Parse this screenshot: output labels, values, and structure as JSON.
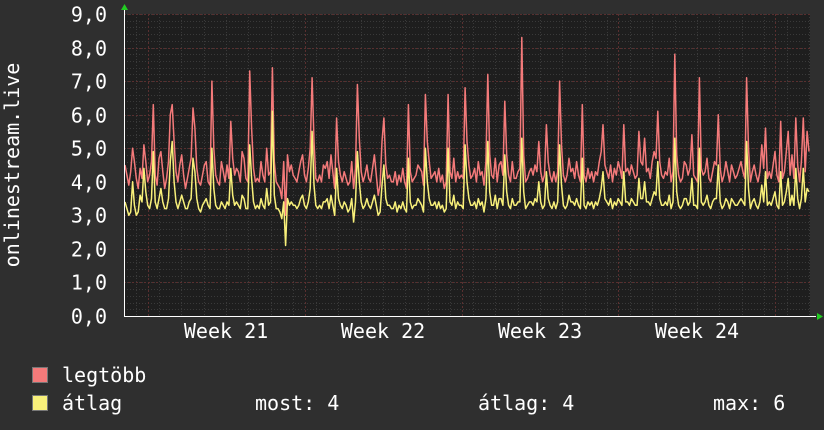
{
  "colors": {
    "background": "#2f2f2f",
    "plot_background": "#1e1e1e",
    "grid_minor": "#3a3a3a",
    "grid_major": "#5a2f2f",
    "max_series": "#f47a7a",
    "avg_series": "#f8f07a",
    "axis_arrow": "#22cc22"
  },
  "chart_data": {
    "type": "line",
    "ylabel": "onlinestream.live",
    "ylim": [
      0,
      9
    ],
    "yticks": [
      "0,0",
      "1,0",
      "2,0",
      "3,0",
      "4,0",
      "5,0",
      "6,0",
      "7,0",
      "8,0",
      "9,0"
    ],
    "xlabels": [
      "Week 21",
      "Week 22",
      "Week 23",
      "Week 24"
    ],
    "x_range_weeks": [
      20.35,
      24.72
    ],
    "grid": true,
    "series": [
      {
        "name": "legtöbb",
        "color": "#f47a7a",
        "values": [
          4.5,
          4.2,
          3.9,
          4.3,
          5.0,
          4.6,
          4.1,
          3.8,
          4.4,
          4.1,
          5.1,
          4.6,
          4.0,
          4.2,
          4.6,
          6.3,
          4.2,
          3.9,
          4.7,
          4.9,
          4.3,
          3.8,
          4.1,
          4.6,
          6.0,
          6.3,
          5.2,
          4.3,
          4.0,
          4.5,
          4.8,
          4.2,
          3.8,
          4.1,
          4.4,
          4.7,
          6.2,
          5.6,
          4.4,
          4.0,
          3.9,
          4.2,
          4.5,
          4.6,
          4.0,
          3.9,
          7.0,
          5.0,
          4.2,
          4.0,
          3.9,
          4.6,
          4.3,
          4.0,
          4.5,
          4.1,
          5.8,
          4.7,
          4.2,
          4.4,
          4.3,
          4.0,
          4.9,
          4.7,
          4.1,
          4.0,
          7.3,
          5.6,
          4.4,
          4.0,
          4.1,
          4.0,
          4.6,
          4.2,
          4.0,
          5.0,
          4.2,
          4.3,
          7.4,
          4.6,
          4.0,
          3.9,
          3.8,
          3.5,
          4.6,
          3.0,
          4.8,
          4.3,
          4.5,
          4.2,
          4.1,
          4.0,
          4.3,
          4.6,
          4.8,
          4.2,
          4.0,
          4.4,
          5.0,
          7.1,
          5.2,
          4.1,
          4.0,
          4.2,
          4.0,
          4.5,
          4.4,
          4.6,
          4.1,
          4.8,
          4.3,
          3.8,
          5.9,
          4.6,
          4.2,
          4.0,
          4.3,
          4.1,
          3.9,
          4.0,
          4.6,
          3.8,
          4.4,
          6.9,
          5.3,
          4.3,
          4.0,
          4.2,
          4.5,
          4.1,
          4.0,
          4.4,
          4.8,
          4.2,
          3.6,
          3.9,
          5.2,
          5.9,
          4.5,
          4.1,
          4.2,
          4.0,
          4.0,
          4.3,
          3.9,
          4.2,
          4.0,
          4.4,
          4.0,
          3.8,
          6.3,
          4.3,
          4.0,
          4.1,
          4.2,
          4.5,
          4.4,
          4.3,
          3.9,
          6.6,
          5.2,
          4.6,
          4.1,
          4.2,
          4.3,
          4.0,
          4.4,
          4.0,
          4.2,
          3.8,
          4.0,
          6.6,
          4.3,
          4.1,
          4.7,
          4.0,
          4.3,
          4.1,
          4.2,
          4.1,
          6.8,
          5.2,
          4.5,
          4.1,
          4.2,
          4.4,
          4.0,
          4.6,
          4.2,
          4.3,
          3.9,
          4.6,
          7.2,
          4.8,
          4.2,
          4.1,
          4.7,
          4.0,
          4.5,
          4.6,
          4.2,
          6.4,
          4.8,
          4.2,
          4.0,
          4.6,
          4.1,
          4.1,
          4.3,
          4.4,
          8.3,
          4.8,
          4.0,
          4.1,
          4.3,
          4.4,
          4.2,
          4.5,
          4.3,
          5.2,
          4.3,
          4.0,
          4.2,
          5.7,
          4.6,
          4.2,
          4.0,
          4.3,
          4.0,
          4.3,
          7.0,
          5.1,
          4.2,
          4.0,
          4.2,
          4.7,
          4.3,
          4.4,
          4.1,
          4.6,
          4.2,
          4.0,
          6.3,
          4.2,
          4.0,
          4.4,
          4.1,
          4.3,
          4.0,
          4.3,
          4.2,
          4.6,
          4.9,
          5.7,
          4.5,
          4.3,
          4.1,
          4.5,
          4.0,
          4.4,
          4.2,
          4.6,
          4.4,
          4.1,
          5.7,
          4.3,
          4.4,
          4.2,
          4.5,
          4.3,
          4.1,
          4.2,
          5.5,
          4.6,
          4.5,
          5.3,
          4.3,
          4.4,
          4.1,
          4.6,
          4.9,
          4.7,
          6.1,
          4.6,
          4.2,
          4.1,
          4.3,
          4.2,
          4.7,
          4.0,
          4.3,
          7.8,
          4.8,
          4.2,
          4.0,
          4.1,
          4.6,
          4.5,
          4.2,
          4.4,
          5.4,
          4.2,
          4.1,
          4.0,
          7.1,
          4.4,
          4.2,
          4.3,
          4.7,
          4.1,
          4.0,
          4.3,
          4.6,
          4.5,
          6.0,
          4.4,
          4.0,
          4.2,
          4.6,
          4.3,
          4.0,
          4.5,
          4.3,
          4.1,
          4.2,
          4.4,
          4.6,
          4.3,
          4.1,
          7.1,
          5.0,
          4.0,
          4.3,
          4.5,
          4.2,
          4.0,
          4.3,
          5.1,
          4.4,
          5.6,
          4.1,
          4.3,
          4.1,
          4.5,
          4.9,
          4.2,
          4.0,
          5.8,
          4.1,
          4.3,
          4.9,
          5.5,
          4.2,
          4.8,
          4.1,
          5.9,
          4.5,
          4.0,
          4.6,
          5.9,
          4.3,
          5.5,
          4.9
        ]
      },
      {
        "name": "átlag",
        "color": "#f8f07a",
        "values": [
          3.4,
          3.2,
          3.0,
          3.1,
          4.0,
          3.3,
          3.0,
          3.1,
          3.6,
          3.4,
          4.4,
          3.7,
          3.3,
          3.2,
          3.5,
          4.9,
          3.4,
          3.2,
          3.5,
          3.8,
          3.4,
          3.2,
          3.2,
          3.5,
          4.6,
          5.2,
          4.0,
          3.4,
          3.2,
          3.4,
          3.6,
          3.4,
          3.2,
          3.2,
          3.4,
          3.5,
          4.7,
          4.3,
          3.5,
          3.2,
          3.1,
          3.3,
          3.4,
          3.5,
          3.3,
          3.2,
          5.0,
          3.8,
          3.3,
          3.2,
          3.2,
          3.4,
          3.3,
          3.2,
          3.4,
          3.3,
          4.4,
          3.6,
          3.3,
          3.4,
          3.3,
          3.2,
          3.6,
          3.5,
          3.2,
          3.2,
          5.1,
          4.1,
          3.4,
          3.2,
          3.3,
          3.2,
          3.5,
          3.3,
          3.2,
          3.8,
          3.3,
          3.4,
          6.1,
          3.6,
          3.2,
          3.2,
          3.1,
          2.9,
          3.4,
          2.1,
          3.5,
          3.3,
          3.4,
          3.3,
          3.3,
          3.2,
          3.3,
          3.5,
          3.6,
          3.3,
          3.2,
          3.4,
          3.8,
          5.5,
          3.9,
          3.3,
          3.2,
          3.3,
          3.2,
          3.4,
          3.4,
          3.5,
          3.2,
          3.6,
          3.3,
          3.0,
          4.4,
          3.5,
          3.3,
          3.2,
          3.4,
          3.3,
          3.1,
          3.2,
          3.5,
          2.8,
          3.4,
          4.9,
          4.0,
          3.4,
          3.2,
          3.3,
          3.5,
          3.3,
          3.2,
          3.4,
          3.6,
          3.3,
          3.0,
          3.1,
          3.9,
          4.5,
          3.5,
          3.3,
          3.3,
          3.2,
          3.2,
          3.4,
          3.1,
          3.3,
          3.2,
          3.4,
          3.2,
          3.1,
          4.7,
          3.4,
          3.2,
          3.3,
          3.3,
          3.5,
          3.4,
          3.3,
          3.1,
          5.0,
          4.0,
          3.5,
          3.3,
          3.3,
          3.4,
          3.2,
          3.4,
          3.2,
          3.3,
          3.1,
          3.2,
          5.0,
          3.4,
          3.3,
          3.6,
          3.2,
          3.4,
          3.3,
          3.3,
          3.2,
          5.1,
          4.0,
          3.5,
          3.3,
          3.3,
          3.4,
          3.2,
          3.5,
          3.3,
          3.4,
          3.1,
          3.5,
          5.2,
          3.7,
          3.3,
          3.3,
          3.6,
          3.2,
          3.5,
          3.5,
          3.3,
          4.8,
          3.7,
          3.3,
          3.2,
          3.5,
          3.3,
          3.3,
          3.4,
          3.4,
          5.3,
          3.7,
          3.2,
          3.3,
          3.4,
          3.4,
          3.3,
          3.5,
          3.4,
          4.0,
          3.4,
          3.2,
          3.3,
          4.3,
          3.5,
          3.3,
          3.2,
          3.4,
          3.2,
          3.4,
          5.1,
          3.9,
          3.3,
          3.2,
          3.3,
          3.6,
          3.4,
          3.4,
          3.3,
          3.5,
          3.3,
          3.2,
          4.7,
          3.3,
          3.2,
          3.4,
          3.3,
          3.4,
          3.2,
          3.4,
          3.3,
          3.5,
          3.8,
          4.3,
          3.5,
          3.4,
          3.3,
          3.5,
          3.2,
          3.4,
          3.3,
          3.5,
          3.4,
          3.3,
          4.3,
          3.4,
          3.4,
          3.3,
          3.5,
          3.4,
          3.3,
          3.3,
          4.1,
          3.5,
          3.5,
          4.0,
          3.4,
          3.4,
          3.3,
          3.5,
          3.7,
          3.6,
          4.6,
          3.5,
          3.3,
          3.3,
          3.4,
          3.3,
          3.6,
          3.2,
          3.4,
          5.3,
          3.7,
          3.3,
          3.2,
          3.3,
          3.5,
          3.5,
          3.3,
          3.4,
          4.1,
          3.3,
          3.3,
          3.2,
          5.0,
          3.4,
          3.3,
          3.4,
          3.6,
          3.3,
          3.2,
          3.4,
          3.5,
          3.5,
          4.5,
          3.4,
          3.2,
          3.3,
          3.5,
          3.4,
          3.2,
          3.5,
          3.4,
          3.3,
          3.3,
          3.4,
          3.5,
          3.4,
          3.3,
          5.2,
          3.8,
          3.2,
          3.4,
          3.5,
          3.3,
          3.2,
          3.4,
          3.9,
          3.4,
          4.3,
          3.3,
          3.4,
          3.3,
          3.5,
          3.7,
          3.3,
          3.2,
          4.3,
          3.3,
          3.4,
          3.7,
          4.1,
          3.3,
          3.6,
          3.3,
          4.4,
          3.5,
          3.2,
          3.5,
          4.4,
          3.4,
          3.8,
          3.7
        ]
      }
    ]
  },
  "legend": {
    "max_label": "legtöbb",
    "avg_label": "átlag",
    "now_label": "most:",
    "now_value": "4",
    "mean_label": "átlag:",
    "mean_value": "4",
    "max_stat_label": "max:",
    "max_stat_value": "6"
  }
}
